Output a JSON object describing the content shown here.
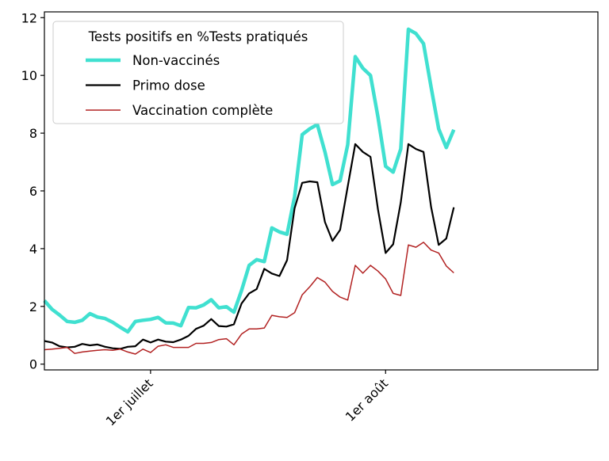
{
  "chart_data": {
    "type": "line",
    "legend_title": "Tests positifs en %Tests pratiqués",
    "legend_position": "upper-left",
    "x_start": "2021-06-17",
    "x_step_days": 1,
    "xlim": [
      "2021-06-17",
      "2021-08-29"
    ],
    "ylim": [
      -0.2,
      12.2
    ],
    "y_ticks": [
      0,
      2,
      4,
      6,
      8,
      10,
      12
    ],
    "x_ticks": [
      {
        "date": "2021-07-01",
        "label": "1er juillet"
      },
      {
        "date": "2021-08-01",
        "label": "1er août"
      }
    ],
    "grid": false,
    "series": [
      {
        "name": "Non-vaccinés",
        "color": "#40e0d0",
        "values": [
          2.2,
          1.9,
          1.7,
          1.48,
          1.45,
          1.52,
          1.75,
          1.63,
          1.58,
          1.45,
          1.28,
          1.12,
          1.48,
          1.52,
          1.55,
          1.62,
          1.43,
          1.42,
          1.33,
          1.96,
          1.95,
          2.05,
          2.23,
          1.95,
          1.99,
          1.8,
          2.55,
          3.42,
          3.62,
          3.55,
          4.72,
          4.58,
          4.5,
          5.8,
          7.95,
          8.15,
          8.3,
          7.35,
          6.22,
          6.35,
          7.6,
          10.65,
          10.25,
          10.0,
          8.55,
          6.85,
          6.65,
          7.45,
          11.6,
          11.45,
          11.1,
          9.6,
          8.15,
          7.5,
          8.12
        ]
      },
      {
        "name": "Primo dose",
        "color": "#000000",
        "values": [
          0.8,
          0.75,
          0.62,
          0.58,
          0.6,
          0.7,
          0.65,
          0.68,
          0.6,
          0.55,
          0.53,
          0.6,
          0.62,
          0.85,
          0.75,
          0.85,
          0.78,
          0.76,
          0.85,
          0.98,
          1.22,
          1.33,
          1.56,
          1.32,
          1.3,
          1.38,
          2.1,
          2.45,
          2.6,
          3.3,
          3.14,
          3.05,
          3.6,
          5.4,
          6.28,
          6.33,
          6.3,
          4.92,
          4.27,
          4.65,
          6.15,
          7.62,
          7.35,
          7.18,
          5.35,
          3.85,
          4.15,
          5.6,
          7.62,
          7.45,
          7.35,
          5.45,
          4.13,
          4.35,
          5.43
        ]
      },
      {
        "name": "Vaccination complète",
        "color": "#b22222",
        "values": [
          0.5,
          0.52,
          0.55,
          0.58,
          0.37,
          0.42,
          0.45,
          0.48,
          0.5,
          0.48,
          0.52,
          0.42,
          0.35,
          0.52,
          0.4,
          0.62,
          0.67,
          0.58,
          0.58,
          0.58,
          0.72,
          0.72,
          0.75,
          0.85,
          0.88,
          0.67,
          1.04,
          1.22,
          1.22,
          1.25,
          1.69,
          1.64,
          1.62,
          1.78,
          2.4,
          2.68,
          3.0,
          2.84,
          2.52,
          2.32,
          2.22,
          3.42,
          3.15,
          3.42,
          3.22,
          2.95,
          2.45,
          2.38,
          4.13,
          4.05,
          4.22,
          3.95,
          3.85,
          3.4,
          3.16
        ]
      }
    ]
  }
}
